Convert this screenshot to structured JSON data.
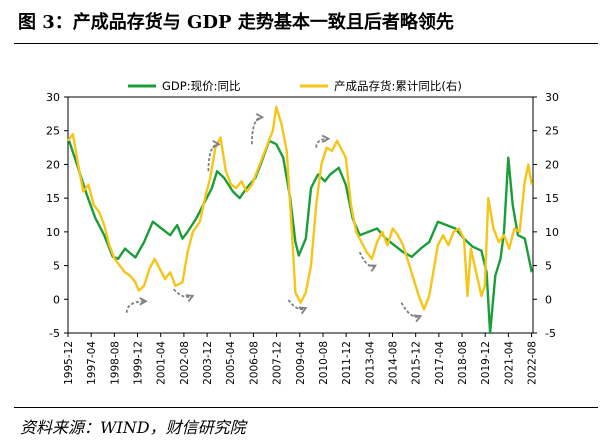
{
  "title": "图 3：产成品存货与 GDP 走势基本一致且后者略领先",
  "source": "资料来源：WIND，财信研究院",
  "chart_data": {
    "type": "line",
    "legend_position": "top",
    "grid": false,
    "ylim_left": [
      -5,
      30
    ],
    "ylim_right": [
      -5,
      30
    ],
    "yticks_left": [
      "30",
      "25",
      "20",
      "15",
      "10",
      "5",
      "0",
      "-5"
    ],
    "yticks_right": [
      "30",
      "25",
      "20",
      "15",
      "10",
      "5",
      "0",
      "-5"
    ],
    "x_categories": [
      "1995-12",
      "1997-04",
      "1998-08",
      "1999-12",
      "2001-04",
      "2002-08",
      "2003-12",
      "2005-04",
      "2006-08",
      "2007-12",
      "2009-04",
      "2010-08",
      "2011-12",
      "2013-04",
      "2014-08",
      "2015-12",
      "2017-04",
      "2018-08",
      "2019-12",
      "2021-04",
      "2022-08"
    ],
    "colors": {
      "gdp": "#1a9e3a",
      "inventory": "#f5c518",
      "arrow": "#7f7f7f"
    },
    "series": [
      {
        "name": "GDP:现价:同比",
        "axis": "left",
        "color": "#1a9e3a",
        "points": [
          [
            1995.92,
            24.0
          ],
          [
            1996.5,
            19.5
          ],
          [
            1997.0,
            15.5
          ],
          [
            1997.5,
            12.0
          ],
          [
            1998.0,
            9.5
          ],
          [
            1998.5,
            6.3
          ],
          [
            1998.8,
            6.0
          ],
          [
            1999.2,
            7.5
          ],
          [
            1999.8,
            6.2
          ],
          [
            2000.3,
            8.5
          ],
          [
            2000.8,
            11.5
          ],
          [
            2001.3,
            10.5
          ],
          [
            2001.8,
            9.5
          ],
          [
            2002.2,
            11.0
          ],
          [
            2002.5,
            9.0
          ],
          [
            2002.8,
            10.0
          ],
          [
            2003.3,
            12.0
          ],
          [
            2003.7,
            14.0
          ],
          [
            2004.2,
            16.5
          ],
          [
            2004.5,
            19.0
          ],
          [
            2004.9,
            18.0
          ],
          [
            2005.4,
            16.0
          ],
          [
            2005.8,
            15.0
          ],
          [
            2006.2,
            16.5
          ],
          [
            2006.7,
            18.0
          ],
          [
            2007.0,
            20.0
          ],
          [
            2007.5,
            23.5
          ],
          [
            2007.9,
            23.0
          ],
          [
            2008.3,
            21.0
          ],
          [
            2008.7,
            15.0
          ],
          [
            2009.0,
            8.5
          ],
          [
            2009.2,
            6.5
          ],
          [
            2009.6,
            9.0
          ],
          [
            2009.9,
            16.5
          ],
          [
            2010.3,
            18.5
          ],
          [
            2010.7,
            17.5
          ],
          [
            2011.0,
            18.5
          ],
          [
            2011.5,
            19.5
          ],
          [
            2011.9,
            17.0
          ],
          [
            2012.3,
            12.0
          ],
          [
            2012.7,
            9.5
          ],
          [
            2013.2,
            10.0
          ],
          [
            2013.7,
            10.5
          ],
          [
            2014.2,
            9.0
          ],
          [
            2014.7,
            8.0
          ],
          [
            2015.2,
            7.0
          ],
          [
            2015.7,
            6.3
          ],
          [
            2016.2,
            7.5
          ],
          [
            2016.7,
            8.5
          ],
          [
            2017.2,
            11.5
          ],
          [
            2017.7,
            11.0
          ],
          [
            2018.2,
            10.5
          ],
          [
            2018.7,
            9.0
          ],
          [
            2019.2,
            7.8
          ],
          [
            2019.7,
            7.2
          ],
          [
            2020.0,
            4.0
          ],
          [
            2020.2,
            -5.0
          ],
          [
            2020.5,
            3.5
          ],
          [
            2020.8,
            6.0
          ],
          [
            2021.0,
            10.0
          ],
          [
            2021.25,
            21.0
          ],
          [
            2021.5,
            14.0
          ],
          [
            2021.8,
            9.5
          ],
          [
            2022.2,
            9.0
          ],
          [
            2022.6,
            4.0
          ]
        ]
      },
      {
        "name": "产成品存货:累计同比(右)",
        "axis": "right",
        "color": "#f5c518",
        "points": [
          [
            1995.92,
            23.5
          ],
          [
            1996.2,
            24.5
          ],
          [
            1996.5,
            20.0
          ],
          [
            1996.8,
            16.0
          ],
          [
            1997.1,
            17.0
          ],
          [
            1997.4,
            14.0
          ],
          [
            1997.7,
            13.0
          ],
          [
            1998.0,
            11.0
          ],
          [
            1998.3,
            8.0
          ],
          [
            1998.6,
            6.0
          ],
          [
            1998.9,
            5.0
          ],
          [
            1999.2,
            4.0
          ],
          [
            1999.5,
            3.5
          ],
          [
            1999.8,
            2.5
          ],
          [
            2000.0,
            1.3
          ],
          [
            2000.3,
            2.0
          ],
          [
            2000.6,
            4.5
          ],
          [
            2000.9,
            6.0
          ],
          [
            2001.2,
            4.5
          ],
          [
            2001.5,
            3.0
          ],
          [
            2001.8,
            4.0
          ],
          [
            2002.1,
            2.0
          ],
          [
            2002.5,
            2.5
          ],
          [
            2002.8,
            7.0
          ],
          [
            2003.1,
            10.0
          ],
          [
            2003.5,
            11.5
          ],
          [
            2003.8,
            15.0
          ],
          [
            2004.1,
            18.0
          ],
          [
            2004.4,
            22.5
          ],
          [
            2004.7,
            24.0
          ],
          [
            2005.0,
            19.0
          ],
          [
            2005.3,
            17.0
          ],
          [
            2005.6,
            16.5
          ],
          [
            2005.9,
            17.5
          ],
          [
            2006.2,
            16.0
          ],
          [
            2006.5,
            17.0
          ],
          [
            2006.8,
            19.0
          ],
          [
            2007.1,
            21.0
          ],
          [
            2007.4,
            23.0
          ],
          [
            2007.7,
            25.0
          ],
          [
            2007.9,
            28.5
          ],
          [
            2008.2,
            26.0
          ],
          [
            2008.5,
            22.0
          ],
          [
            2008.8,
            10.0
          ],
          [
            2009.0,
            1.0
          ],
          [
            2009.3,
            -0.5
          ],
          [
            2009.6,
            1.0
          ],
          [
            2009.9,
            5.0
          ],
          [
            2010.2,
            14.0
          ],
          [
            2010.5,
            20.0
          ],
          [
            2010.8,
            22.5
          ],
          [
            2011.1,
            22.0
          ],
          [
            2011.4,
            23.5
          ],
          [
            2011.7,
            22.0
          ],
          [
            2011.9,
            21.0
          ],
          [
            2012.2,
            14.0
          ],
          [
            2012.5,
            10.0
          ],
          [
            2012.8,
            8.5
          ],
          [
            2013.1,
            7.0
          ],
          [
            2013.4,
            6.0
          ],
          [
            2013.7,
            8.5
          ],
          [
            2014.0,
            10.0
          ],
          [
            2014.3,
            8.0
          ],
          [
            2014.6,
            10.5
          ],
          [
            2014.9,
            9.5
          ],
          [
            2015.2,
            8.0
          ],
          [
            2015.5,
            5.5
          ],
          [
            2015.8,
            3.0
          ],
          [
            2016.1,
            0.5
          ],
          [
            2016.4,
            -1.5
          ],
          [
            2016.7,
            0.5
          ],
          [
            2016.9,
            3.5
          ],
          [
            2017.2,
            8.0
          ],
          [
            2017.5,
            9.5
          ],
          [
            2017.8,
            8.0
          ],
          [
            2018.1,
            10.0
          ],
          [
            2018.4,
            10.5
          ],
          [
            2018.7,
            9.0
          ],
          [
            2018.9,
            0.5
          ],
          [
            2019.1,
            7.5
          ],
          [
            2019.4,
            4.0
          ],
          [
            2019.7,
            0.5
          ],
          [
            2019.9,
            2.0
          ],
          [
            2020.1,
            15.0
          ],
          [
            2020.4,
            10.5
          ],
          [
            2020.7,
            8.5
          ],
          [
            2021.0,
            9.5
          ],
          [
            2021.3,
            7.5
          ],
          [
            2021.6,
            10.5
          ],
          [
            2021.9,
            10.0
          ],
          [
            2022.2,
            17.5
          ],
          [
            2022.4,
            20.0
          ],
          [
            2022.6,
            17.0
          ]
        ]
      }
    ],
    "annotations": [
      {
        "type": "arrow",
        "from": [
          1999.3,
          -2.0
        ],
        "to": [
          2000.4,
          -0.3
        ],
        "axis": "left"
      },
      {
        "type": "arrow",
        "from": [
          2002.0,
          1.5
        ],
        "to": [
          2003.1,
          0.5
        ],
        "axis": "left"
      },
      {
        "type": "arrow",
        "from": [
          2004.0,
          19.0
        ],
        "to": [
          2004.6,
          23.0
        ],
        "axis": "left"
      },
      {
        "type": "arrow",
        "from": [
          2006.5,
          23.0
        ],
        "to": [
          2007.1,
          27.0
        ],
        "axis": "left"
      },
      {
        "type": "arrow",
        "from": [
          2008.6,
          -0.1
        ],
        "to": [
          2009.6,
          -1.3
        ],
        "axis": "left"
      },
      {
        "type": "arrow",
        "from": [
          2010.2,
          22.5
        ],
        "to": [
          2010.9,
          23.8
        ],
        "axis": "left"
      },
      {
        "type": "arrow",
        "from": [
          2012.7,
          7.0
        ],
        "to": [
          2013.6,
          5.0
        ],
        "axis": "left"
      },
      {
        "type": "arrow",
        "from": [
          2015.1,
          -0.5
        ],
        "to": [
          2016.2,
          -2.5
        ],
        "axis": "left"
      }
    ]
  }
}
